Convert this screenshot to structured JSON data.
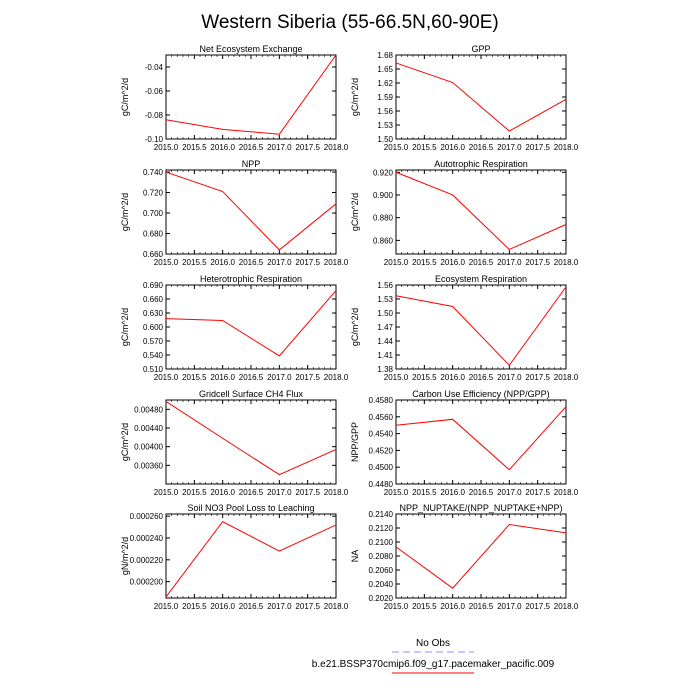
{
  "title": "Western Siberia (55-66.5N,60-90E)",
  "legend": {
    "entries": [
      {
        "label": "No Obs",
        "color": "#8f8fff",
        "dash": "dashed"
      },
      {
        "label": "b.e21.BSSP370cmip6.f09_g17.pacemaker_pacific.009",
        "color": "#ff0000",
        "dash": "solid"
      }
    ],
    "placement": "bottom-right"
  },
  "chart_data": [
    {
      "type": "line",
      "title": "Net Ecosystem Exchange",
      "ylabel": "gC/m^2/d",
      "x": [
        2015,
        2016,
        2017,
        2018
      ],
      "series": [
        {
          "values": [
            -0.084,
            -0.092,
            -0.096,
            -0.03
          ],
          "color": "#ff0000"
        }
      ],
      "ylim": [
        -0.1,
        -0.03
      ],
      "yticks": [
        -0.1,
        -0.08,
        -0.06,
        -0.04
      ],
      "ytick_labels": [
        "-0.10",
        "-0.08",
        "-0.06",
        "-0.04"
      ],
      "xlim": [
        2015,
        2018
      ],
      "xticks": [
        2015,
        2015.5,
        2016,
        2016.5,
        2017,
        2017.5,
        2018
      ],
      "xtick_labels": [
        "2015.0",
        "2015.5",
        "2016.0",
        "2016.5",
        "2017.0",
        "2017.5",
        "2018.0"
      ]
    },
    {
      "type": "line",
      "title": "GPP",
      "ylabel": "gC/m^2/d",
      "x": [
        2015,
        2016,
        2017,
        2018
      ],
      "series": [
        {
          "values": [
            1.663,
            1.621,
            1.517,
            1.585
          ],
          "color": "#ff0000"
        }
      ],
      "ylim": [
        1.5,
        1.68
      ],
      "yticks": [
        1.5,
        1.53,
        1.56,
        1.59,
        1.62,
        1.65,
        1.68
      ],
      "ytick_labels": [
        "1.50",
        "1.53",
        "1.56",
        "1.59",
        "1.62",
        "1.65",
        "1.68"
      ],
      "xlim": [
        2015,
        2018
      ],
      "xticks": [
        2015,
        2015.5,
        2016,
        2016.5,
        2017,
        2017.5,
        2018
      ],
      "xtick_labels": [
        "2015.0",
        "2015.5",
        "2016.0",
        "2016.5",
        "2017.0",
        "2017.5",
        "2018.0"
      ]
    },
    {
      "type": "line",
      "title": "NPP",
      "ylabel": "gC/m^2/d",
      "x": [
        2015,
        2016,
        2017,
        2018
      ],
      "series": [
        {
          "values": [
            0.74,
            0.721,
            0.664,
            0.709
          ],
          "color": "#ff0000"
        }
      ],
      "ylim": [
        0.66,
        0.742
      ],
      "yticks": [
        0.66,
        0.68,
        0.7,
        0.72,
        0.74
      ],
      "ytick_labels": [
        "0.660",
        "0.680",
        "0.700",
        "0.720",
        "0.740"
      ],
      "xlim": [
        2015,
        2018
      ],
      "xticks": [
        2015,
        2015.5,
        2016,
        2016.5,
        2017,
        2017.5,
        2018
      ],
      "xtick_labels": [
        "2015.0",
        "2015.5",
        "2016.0",
        "2016.5",
        "2017.0",
        "2017.5",
        "2018.0"
      ]
    },
    {
      "type": "line",
      "title": "Autotrophic Respiration",
      "ylabel": "gC/m^2/d",
      "x": [
        2015,
        2016,
        2017,
        2018
      ],
      "series": [
        {
          "values": [
            0.92,
            0.9,
            0.852,
            0.874
          ],
          "color": "#ff0000"
        }
      ],
      "ylim": [
        0.848,
        0.922
      ],
      "yticks": [
        0.86,
        0.88,
        0.9,
        0.92
      ],
      "ytick_labels": [
        "0.860",
        "0.880",
        "0.900",
        "0.920"
      ],
      "xlim": [
        2015,
        2018
      ],
      "xticks": [
        2015,
        2015.5,
        2016,
        2016.5,
        2017,
        2017.5,
        2018
      ],
      "xtick_labels": [
        "2015.0",
        "2015.5",
        "2016.0",
        "2016.5",
        "2017.0",
        "2017.5",
        "2018.0"
      ]
    },
    {
      "type": "line",
      "title": "Heterotrophic Respiration",
      "ylabel": "gC/m^2/d",
      "x": [
        2015,
        2016,
        2017,
        2018
      ],
      "series": [
        {
          "values": [
            0.618,
            0.614,
            0.538,
            0.678
          ],
          "color": "#ff0000"
        }
      ],
      "ylim": [
        0.51,
        0.69
      ],
      "yticks": [
        0.51,
        0.54,
        0.57,
        0.6,
        0.63,
        0.66,
        0.69
      ],
      "ytick_labels": [
        "0.510",
        "0.540",
        "0.570",
        "0.600",
        "0.630",
        "0.660",
        "0.690"
      ],
      "xlim": [
        2015,
        2018
      ],
      "xticks": [
        2015,
        2015.5,
        2016,
        2016.5,
        2017,
        2017.5,
        2018
      ],
      "xtick_labels": [
        "2015.0",
        "2015.5",
        "2016.0",
        "2016.5",
        "2017.0",
        "2017.5",
        "2018.0"
      ]
    },
    {
      "type": "line",
      "title": "Ecosystem Respiration",
      "ylabel": "gC/m^2/d",
      "x": [
        2015,
        2016,
        2017,
        2018
      ],
      "series": [
        {
          "values": [
            1.537,
            1.514,
            1.388,
            1.556
          ],
          "color": "#ff0000"
        }
      ],
      "ylim": [
        1.38,
        1.56
      ],
      "yticks": [
        1.38,
        1.41,
        1.44,
        1.47,
        1.5,
        1.53,
        1.56
      ],
      "ytick_labels": [
        "1.38",
        "1.41",
        "1.44",
        "1.47",
        "1.50",
        "1.53",
        "1.56"
      ],
      "xlim": [
        2015,
        2018
      ],
      "xticks": [
        2015,
        2015.5,
        2016,
        2016.5,
        2017,
        2017.5,
        2018
      ],
      "xtick_labels": [
        "2015.0",
        "2015.5",
        "2016.0",
        "2016.5",
        "2017.0",
        "2017.5",
        "2018.0"
      ]
    },
    {
      "type": "line",
      "title": "Gridcell Surface CH4 Flux",
      "ylabel": "gC/m^2/d",
      "x": [
        2015,
        2016,
        2017,
        2018
      ],
      "series": [
        {
          "values": [
            0.00497,
            0.00418,
            0.0034,
            0.00394
          ],
          "color": "#ff0000"
        }
      ],
      "ylim": [
        0.0032,
        0.005
      ],
      "yticks": [
        0.0036,
        0.004,
        0.0044,
        0.0048
      ],
      "ytick_labels": [
        "0.00360",
        "0.00400",
        "0.00440",
        "0.00480"
      ],
      "xlim": [
        2015,
        2018
      ],
      "xticks": [
        2015,
        2015.5,
        2016,
        2016.5,
        2017,
        2017.5,
        2018
      ],
      "xtick_labels": [
        "2015.0",
        "2015.5",
        "2016.0",
        "2016.5",
        "2017.0",
        "2017.5",
        "2018.0"
      ]
    },
    {
      "type": "line",
      "title": "Carbon Use Efficiency (NPP/GPP)",
      "ylabel": "NPP/GPP",
      "x": [
        2015,
        2016,
        2017,
        2018
      ],
      "series": [
        {
          "values": [
            0.455,
            0.4557,
            0.4497,
            0.4572
          ],
          "color": "#ff0000"
        }
      ],
      "ylim": [
        0.448,
        0.458
      ],
      "yticks": [
        0.448,
        0.45,
        0.452,
        0.454,
        0.456,
        0.458
      ],
      "ytick_labels": [
        "0.4480",
        "0.4500",
        "0.4520",
        "0.4540",
        "0.4560",
        "0.4580"
      ],
      "xlim": [
        2015,
        2018
      ],
      "xticks": [
        2015,
        2015.5,
        2016,
        2016.5,
        2017,
        2017.5,
        2018
      ],
      "xtick_labels": [
        "2015.0",
        "2015.5",
        "2016.0",
        "2016.5",
        "2017.0",
        "2017.5",
        "2018.0"
      ]
    },
    {
      "type": "line",
      "title": "Soil NO3 Pool Loss to Leaching",
      "ylabel": "gN/m^2/d",
      "x": [
        2015,
        2016,
        2017,
        2018
      ],
      "series": [
        {
          "values": [
            0.000186,
            0.000255,
            0.000228,
            0.000252
          ],
          "color": "#ff0000"
        }
      ],
      "ylim": [
        0.000185,
        0.000262
      ],
      "yticks": [
        0.0002,
        0.00022,
        0.00024,
        0.00026
      ],
      "ytick_labels": [
        "0.000200",
        "0.000220",
        "0.000240",
        "0.000260"
      ],
      "xlim": [
        2015,
        2018
      ],
      "xticks": [
        2015,
        2015.5,
        2016,
        2016.5,
        2017,
        2017.5,
        2018
      ],
      "xtick_labels": [
        "2015.0",
        "2015.5",
        "2016.0",
        "2016.5",
        "2017.0",
        "2017.5",
        "2018.0"
      ]
    },
    {
      "type": "line",
      "title": "NPP_NUPTAKE/(NPP_NUPTAKE+NPP)",
      "ylabel": "NA",
      "x": [
        2015,
        2016,
        2017,
        2018
      ],
      "series": [
        {
          "values": [
            0.2093,
            0.2034,
            0.2125,
            0.2113
          ],
          "color": "#ff0000"
        }
      ],
      "ylim": [
        0.202,
        0.214
      ],
      "yticks": [
        0.202,
        0.204,
        0.206,
        0.208,
        0.21,
        0.212,
        0.214
      ],
      "ytick_labels": [
        "0.2020",
        "0.2040",
        "0.2060",
        "0.2080",
        "0.2100",
        "0.2120",
        "0.2140"
      ],
      "xlim": [
        2015,
        2018
      ],
      "xticks": [
        2015,
        2015.5,
        2016,
        2016.5,
        2017,
        2017.5,
        2018
      ],
      "xtick_labels": [
        "2015.0",
        "2015.5",
        "2016.0",
        "2016.5",
        "2017.0",
        "2017.5",
        "2018.0"
      ]
    }
  ]
}
